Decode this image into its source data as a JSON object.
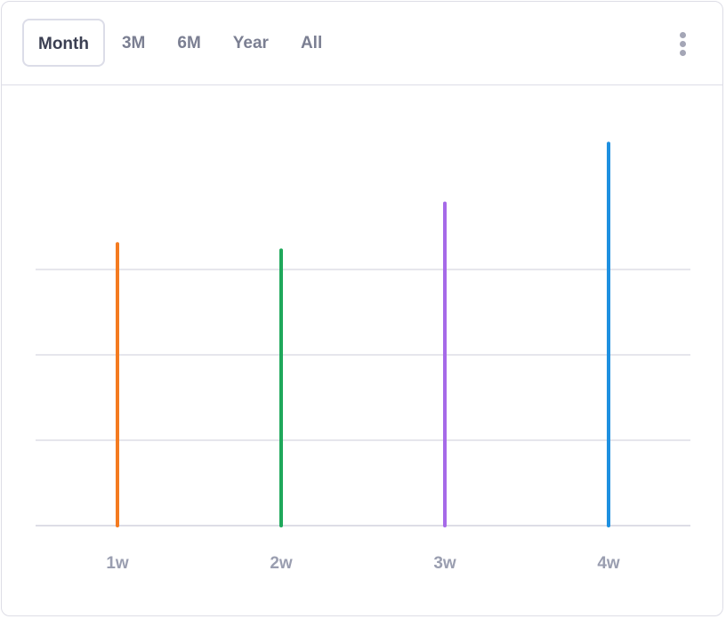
{
  "toolbar": {
    "tabs": [
      {
        "label": "Month",
        "active": true
      },
      {
        "label": "3M",
        "active": false
      },
      {
        "label": "6M",
        "active": false
      },
      {
        "label": "Year",
        "active": false
      },
      {
        "label": "All",
        "active": false
      }
    ],
    "menu_icon": "more-vertical-icon"
  },
  "colors": {
    "grid": "#dddde6",
    "tick_label": "#9a9eb0",
    "series": [
      "#f47b20",
      "#1fa85b",
      "#a66ae8",
      "#1e90e0"
    ]
  },
  "chart_data": {
    "type": "bar",
    "categories": [
      "1w",
      "2w",
      "3w",
      "4w"
    ],
    "values": [
      66,
      64.5,
      75.5,
      89.5
    ],
    "ylim": [
      0,
      100
    ],
    "gridlines": [
      0,
      20,
      40,
      60
    ],
    "grid": true,
    "legend": "none",
    "xlabel": "",
    "ylabel": "",
    "title": ""
  }
}
